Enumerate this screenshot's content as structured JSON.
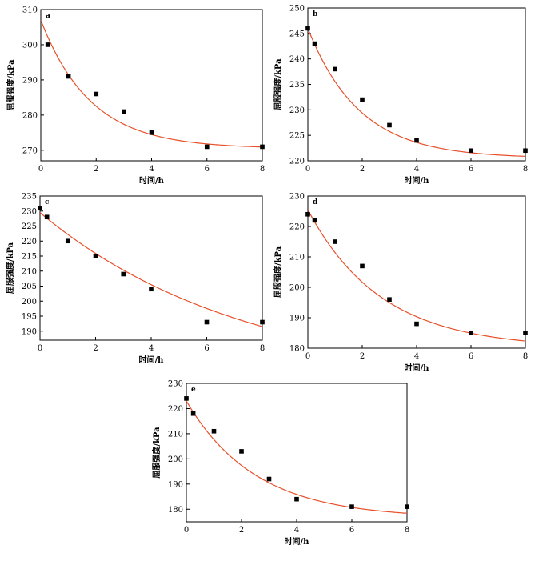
{
  "colors": {
    "fit_line": "#e8502a",
    "points": "#000000",
    "axes": "#000000"
  },
  "chart_data": [
    {
      "type": "scatter",
      "panel": "a",
      "xlabel": "时间/h",
      "ylabel": "屈服强度/kPa",
      "xlim": [
        0,
        8
      ],
      "ylim": [
        267,
        310
      ],
      "xticks": [
        0,
        2,
        4,
        6,
        8
      ],
      "yticks": [
        270,
        280,
        290,
        300,
        310
      ],
      "points": [
        [
          0.25,
          300
        ],
        [
          1,
          291
        ],
        [
          2,
          286
        ],
        [
          3,
          281
        ],
        [
          4,
          275
        ],
        [
          6,
          271
        ],
        [
          8,
          271
        ]
      ],
      "fit": {
        "y0": 270.5,
        "A": 36.5,
        "tau": 1.8
      }
    },
    {
      "type": "scatter",
      "panel": "b",
      "xlabel": "时间/h",
      "ylabel": "屈服强度/kPa",
      "xlim": [
        0,
        8
      ],
      "ylim": [
        220,
        250
      ],
      "xticks": [
        0,
        2,
        4,
        6,
        8
      ],
      "yticks": [
        220,
        225,
        230,
        235,
        240,
        245,
        250
      ],
      "points": [
        [
          0,
          246
        ],
        [
          0.25,
          243
        ],
        [
          1,
          238
        ],
        [
          2,
          232
        ],
        [
          3,
          227
        ],
        [
          4,
          224
        ],
        [
          6,
          222
        ],
        [
          8,
          222
        ]
      ],
      "fit": {
        "y0": 220.5,
        "A": 25.5,
        "tau": 1.9
      }
    },
    {
      "type": "scatter",
      "panel": "c",
      "xlabel": "时间/h",
      "ylabel": "屈服强度/kPa",
      "xlim": [
        0,
        8
      ],
      "ylim": [
        187,
        235
      ],
      "xticks": [
        0,
        2,
        4,
        6,
        8
      ],
      "yticks": [
        190,
        195,
        200,
        205,
        210,
        215,
        220,
        225,
        230,
        235
      ],
      "points": [
        [
          0,
          231
        ],
        [
          0.25,
          228
        ],
        [
          1,
          220
        ],
        [
          2,
          215
        ],
        [
          3,
          209
        ],
        [
          4,
          204
        ],
        [
          6,
          193
        ],
        [
          8,
          193
        ]
      ],
      "fit": {
        "y0": 172,
        "A": 57.5,
        "tau": 7.4
      }
    },
    {
      "type": "scatter",
      "panel": "d",
      "xlabel": "时间/h",
      "ylabel": "屈服强度/kPa",
      "xlim": [
        0,
        8
      ],
      "ylim": [
        180,
        230
      ],
      "xticks": [
        0,
        2,
        4,
        6,
        8
      ],
      "yticks": [
        180,
        190,
        200,
        210,
        220,
        230
      ],
      "points": [
        [
          0,
          224
        ],
        [
          0.25,
          222
        ],
        [
          1,
          215
        ],
        [
          2,
          207
        ],
        [
          3,
          196
        ],
        [
          4,
          188
        ],
        [
          6,
          185
        ],
        [
          8,
          185
        ]
      ],
      "fit": {
        "y0": 180,
        "A": 45.5,
        "tau": 2.7
      }
    },
    {
      "type": "scatter",
      "panel": "e",
      "xlabel": "时间/h",
      "ylabel": "屈服强度/kPa",
      "xlim": [
        0,
        8
      ],
      "ylim": [
        175,
        230
      ],
      "xticks": [
        0,
        2,
        4,
        6,
        8
      ],
      "yticks": [
        180,
        190,
        200,
        210,
        220,
        230
      ],
      "points": [
        [
          0,
          224
        ],
        [
          0.25,
          218
        ],
        [
          1,
          211
        ],
        [
          2,
          203
        ],
        [
          3,
          192
        ],
        [
          4,
          184
        ],
        [
          6,
          181
        ],
        [
          8,
          181
        ]
      ],
      "fit": {
        "y0": 176.5,
        "A": 46.5,
        "tau": 2.5
      }
    }
  ]
}
